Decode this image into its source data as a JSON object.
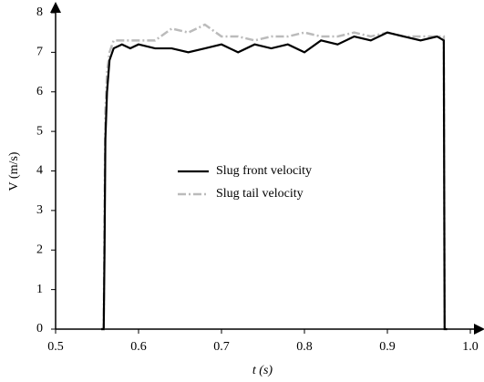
{
  "chart_data": {
    "type": "line",
    "x_label": "t (s)",
    "y_label": "V (m/s)",
    "x": [
      0.555,
      0.558,
      0.559,
      0.56,
      0.562,
      0.565,
      0.57,
      0.58,
      0.59,
      0.6,
      0.62,
      0.64,
      0.66,
      0.68,
      0.7,
      0.72,
      0.74,
      0.76,
      0.78,
      0.8,
      0.82,
      0.84,
      0.86,
      0.88,
      0.9,
      0.92,
      0.94,
      0.96,
      0.968,
      0.969,
      0.972
    ],
    "series": [
      {
        "name": "Slug front velocity",
        "color": "#000000",
        "values": [
          0,
          0,
          2,
          4.8,
          6.0,
          6.8,
          7.1,
          7.2,
          7.1,
          7.2,
          7.1,
          7.1,
          7.0,
          7.1,
          7.2,
          7.0,
          7.2,
          7.1,
          7.2,
          7.0,
          7.3,
          7.2,
          7.4,
          7.3,
          7.5,
          7.4,
          7.3,
          7.4,
          7.3,
          0,
          0
        ]
      },
      {
        "name": "Slug tail velocity",
        "color": "#bbbbbb",
        "values": [
          0,
          0,
          3,
          5.5,
          6.5,
          7.0,
          7.3,
          7.3,
          7.3,
          7.3,
          7.3,
          7.6,
          7.5,
          7.7,
          7.4,
          7.4,
          7.3,
          7.4,
          7.4,
          7.5,
          7.4,
          7.4,
          7.5,
          7.4,
          7.5,
          7.4,
          7.4,
          7.4,
          7.4,
          0,
          0
        ]
      }
    ],
    "xlim": [
      0.5,
      1
    ],
    "xticks": [
      0.5,
      0.6,
      0.7,
      0.8,
      0.9,
      {
        "value": 1,
        "label": "1.0"
      }
    ],
    "ylim": [
      0,
      8
    ],
    "yticks": [
      0,
      1,
      2,
      3,
      4,
      5,
      6,
      7,
      8
    ],
    "legend": "center",
    "grid": false
  }
}
